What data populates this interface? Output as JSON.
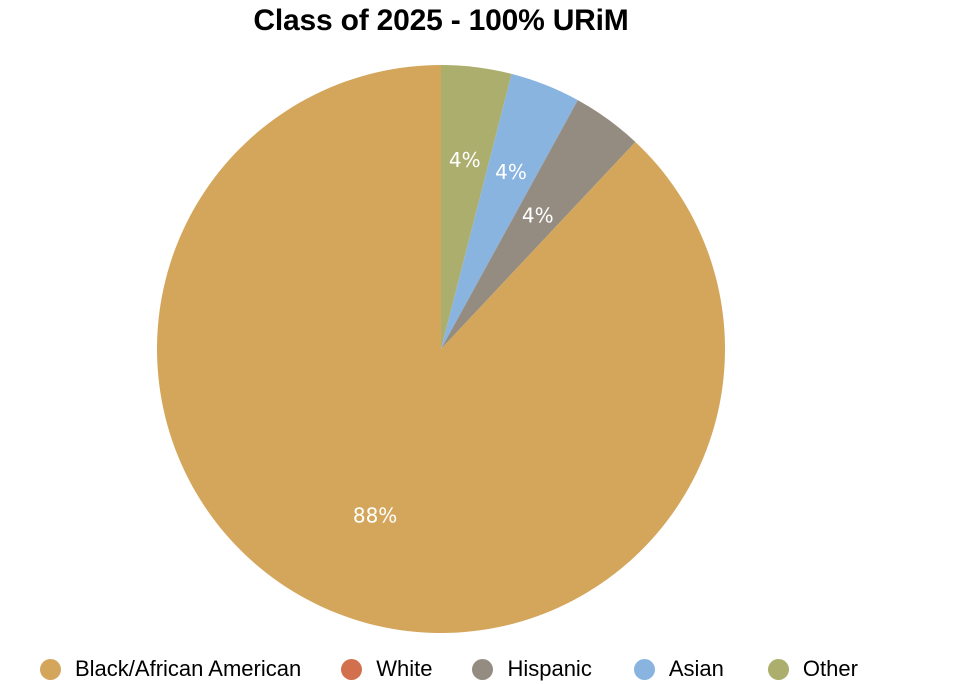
{
  "chart_data": {
    "type": "pie",
    "title": "Class of 2025 - 100% URiM",
    "categories": [
      "Black/African American",
      "White",
      "Hispanic",
      "Asian",
      "Other"
    ],
    "values": [
      88,
      0,
      4,
      4,
      4
    ],
    "labels": [
      "88%",
      "",
      "4%",
      "4%",
      "4%"
    ],
    "colors": [
      "#D4A65C",
      "#D2704E",
      "#958C81",
      "#8AB4E0",
      "#ABAE6C"
    ],
    "legend_position": "bottom",
    "start_angle": "12 o'clock",
    "direction": "clockwise"
  }
}
